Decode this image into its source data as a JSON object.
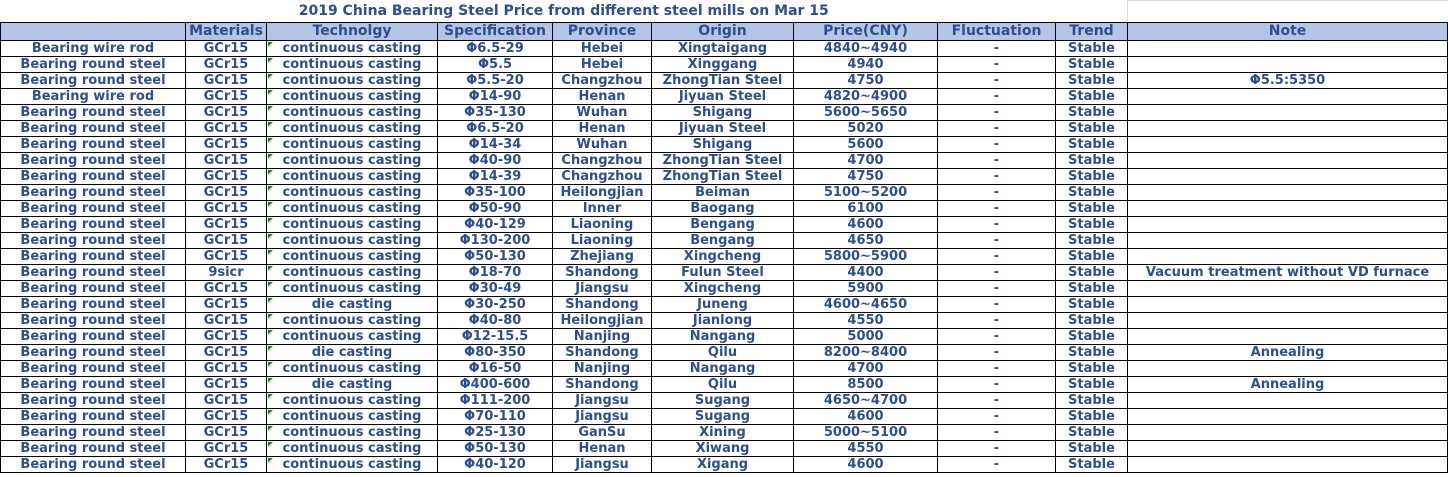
{
  "title": "2019 China Bearing Steel Price from different steel mills on Mar 15",
  "headers": [
    "",
    "Materials",
    "Technolgy",
    "Specification",
    "Province",
    "Origin",
    "Price(CNY)",
    "Fluctuation",
    "Trend",
    "Note"
  ],
  "rows": [
    [
      "Bearing wire rod",
      "GCr15",
      "continuous casting",
      "Φ6.5-29",
      "Hebei",
      "Xingtaigang",
      "4840~4940",
      "-",
      "Stable",
      ""
    ],
    [
      "Bearing round steel",
      "GCr15",
      "continuous casting",
      "Φ5.5",
      "Hebei",
      "Xinggang",
      "4940",
      "-",
      "Stable",
      ""
    ],
    [
      "Bearing round steel",
      "GCr15",
      "continuous casting",
      "Φ5.5-20",
      "Changzhou",
      "ZhongTian Steel",
      "4750",
      "-",
      "Stable",
      "Φ5.5:5350"
    ],
    [
      "Bearing wire rod",
      "GCr15",
      "continuous casting",
      "Φ14-90",
      "Henan",
      "Jiyuan Steel",
      "4820~4900",
      "-",
      "Stable",
      ""
    ],
    [
      "Bearing round steel",
      "GCr15",
      "continuous casting",
      "Φ35-130",
      "Wuhan",
      "Shigang",
      "5600~5650",
      "-",
      "Stable",
      ""
    ],
    [
      "Bearing round steel",
      "GCr15",
      "continuous casting",
      "Φ6.5-20",
      "Henan",
      "Jiyuan Steel",
      "5020",
      "-",
      "Stable",
      ""
    ],
    [
      "Bearing round steel",
      "GCr15",
      "continuous casting",
      "Φ14-34",
      "Wuhan",
      "Shigang",
      "5600",
      "-",
      "Stable",
      ""
    ],
    [
      "Bearing round steel",
      "GCr15",
      "continuous casting",
      "Φ40-90",
      "Changzhou",
      "ZhongTian Steel",
      "4700",
      "-",
      "Stable",
      ""
    ],
    [
      "Bearing round steel",
      "GCr15",
      "continuous casting",
      "Φ14-39",
      "Changzhou",
      "ZhongTian Steel",
      "4750",
      "-",
      "Stable",
      ""
    ],
    [
      "Bearing round steel",
      "GCr15",
      "continuous casting",
      "Φ35-100",
      "Heilongjian",
      "Beiman",
      "5100~5200",
      "-",
      "Stable",
      ""
    ],
    [
      "Bearing round steel",
      "GCr15",
      "continuous casting",
      "Φ50-90",
      "Inner",
      "Baogang",
      "6100",
      "-",
      "Stable",
      ""
    ],
    [
      "Bearing round steel",
      "GCr15",
      "continuous casting",
      "Φ40-129",
      "Liaoning",
      "Bengang",
      "4600",
      "-",
      "Stable",
      ""
    ],
    [
      "Bearing round steel",
      "GCr15",
      "continuous casting",
      "Φ130-200",
      "Liaoning",
      "Bengang",
      "4650",
      "-",
      "Stable",
      ""
    ],
    [
      "Bearing round steel",
      "GCr15",
      "continuous casting",
      "Φ50-130",
      "Zhejiang",
      "Xingcheng",
      "5800~5900",
      "-",
      "Stable",
      ""
    ],
    [
      "Bearing round steel",
      "9sicr",
      "continuous casting",
      "Φ18-70",
      "Shandong",
      "Fulun Steel",
      "4400",
      "-",
      "Stable",
      "Vacuum treatment without VD furnace"
    ],
    [
      "Bearing round steel",
      "GCr15",
      "continuous casting",
      "Φ30-49",
      "Jiangsu",
      "Xingcheng",
      "5900",
      "-",
      "Stable",
      ""
    ],
    [
      "Bearing round steel",
      "GCr15",
      "die casting",
      "Φ30-250",
      "Shandong",
      "Juneng",
      "4600~4650",
      "-",
      "Stable",
      ""
    ],
    [
      "Bearing round steel",
      "GCr15",
      "continuous casting",
      "Φ40-80",
      "Heilongjian",
      "Jianlong",
      "4550",
      "-",
      "Stable",
      ""
    ],
    [
      "Bearing round steel",
      "GCr15",
      "continuous casting",
      "Φ12-15.5",
      "Nanjing",
      "Nangang",
      "5000",
      "-",
      "Stable",
      ""
    ],
    [
      "Bearing round steel",
      "GCr15",
      "die casting",
      "Φ80-350",
      "Shandong",
      "Qilu",
      "8200~8400",
      "-",
      "Stable",
      "Annealing"
    ],
    [
      "Bearing round steel",
      "GCr15",
      "continuous casting",
      "Φ16-50",
      "Nanjing",
      "Nangang",
      "4700",
      "-",
      "Stable",
      ""
    ],
    [
      "Bearing round steel",
      "GCr15",
      "die casting",
      "Φ400-600",
      "Shandong",
      "Qilu",
      "8500",
      "-",
      "Stable",
      "Annealing"
    ],
    [
      "Bearing round steel",
      "GCr15",
      "continuous casting",
      "Φ111-200",
      "Jiangsu",
      "Sugang",
      "4650~4700",
      "-",
      "Stable",
      ""
    ],
    [
      "Bearing round steel",
      "GCr15",
      "continuous casting",
      "Φ70-110",
      "Jiangsu",
      "Sugang",
      "4600",
      "-",
      "Stable",
      ""
    ],
    [
      "Bearing round steel",
      "GCr15",
      "continuous casting",
      "Φ25-130",
      "GanSu",
      "Xining",
      "5000~5100",
      "-",
      "Stable",
      ""
    ],
    [
      "Bearing round steel",
      "GCr15",
      "continuous casting",
      "Φ50-130",
      "Henan",
      "Xiwang",
      "4550",
      "-",
      "Stable",
      ""
    ],
    [
      "Bearing round steel",
      "GCr15",
      "continuous casting",
      "Φ40-120",
      "Jiangsu",
      "Xigang",
      "4600",
      "-",
      "Stable",
      ""
    ]
  ]
}
